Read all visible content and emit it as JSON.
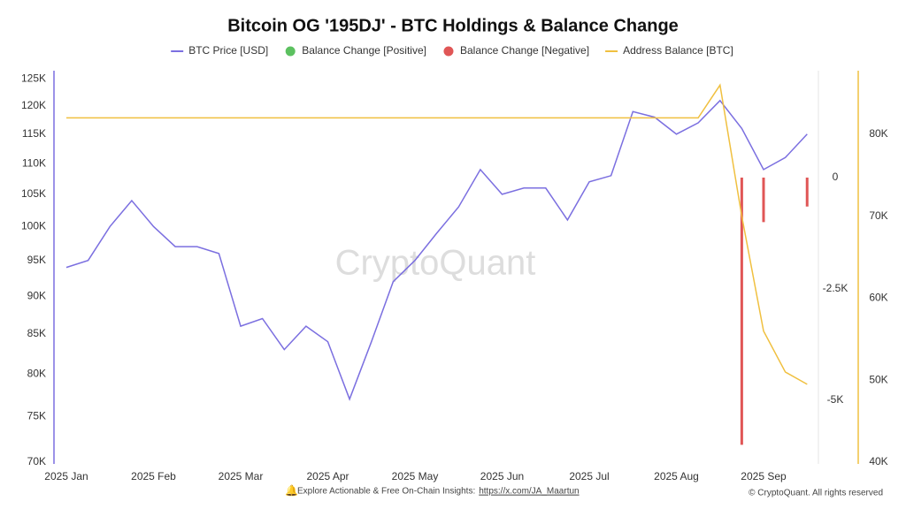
{
  "chart_data": {
    "type": "combo",
    "title": "Bitcoin OG '195DJ' - BTC Holdings & Balance Change",
    "watermark": "CryptoQuant",
    "categories": [
      "2025 Jan",
      null,
      null,
      null,
      "2025 Feb",
      null,
      null,
      null,
      "2025 Mar",
      null,
      null,
      null,
      "2025 Apr",
      null,
      null,
      null,
      "2025 May",
      null,
      null,
      null,
      "2025 Jun",
      null,
      null,
      null,
      "2025 Jul",
      null,
      null,
      null,
      "2025 Aug",
      null,
      null,
      null,
      "2025 Sep",
      null,
      null
    ],
    "series": [
      {
        "name": "BTC Price [USD]",
        "type": "line",
        "color": "#7b6fe0",
        "axis": "y",
        "values": [
          94000,
          95000,
          100000,
          104000,
          100000,
          97000,
          97000,
          96000,
          86000,
          87000,
          83000,
          86000,
          84000,
          77000,
          84000,
          92000,
          95000,
          99000,
          103000,
          109000,
          105000,
          106000,
          106000,
          101000,
          107000,
          108000,
          119000,
          118000,
          115000,
          117000,
          121000,
          116000,
          109000,
          111000,
          115000
        ]
      },
      {
        "name": "Balance Change [Positive]",
        "type": "bar",
        "color": "#5cc160",
        "axis": "y2",
        "values": [
          null,
          null,
          null,
          null,
          null,
          null,
          null,
          null,
          null,
          null,
          null,
          null,
          null,
          null,
          null,
          null,
          null,
          null,
          null,
          null,
          null,
          null,
          null,
          null,
          null,
          null,
          null,
          null,
          null,
          null,
          null,
          null,
          null,
          null,
          null
        ]
      },
      {
        "name": "Balance Change [Negative]",
        "type": "bar",
        "color": "#e05656",
        "axis": "y2",
        "values": [
          null,
          null,
          null,
          null,
          null,
          null,
          null,
          null,
          null,
          null,
          null,
          null,
          null,
          null,
          null,
          null,
          null,
          null,
          null,
          null,
          null,
          null,
          null,
          null,
          null,
          null,
          null,
          null,
          null,
          null,
          null,
          -6000,
          -1000,
          null,
          -650
        ]
      },
      {
        "name": "Address Balance [BTC]",
        "type": "line",
        "color": "#f0c040",
        "axis": "y3",
        "values": [
          82000,
          82000,
          82000,
          82000,
          82000,
          82000,
          82000,
          82000,
          82000,
          82000,
          82000,
          82000,
          82000,
          82000,
          82000,
          82000,
          82000,
          82000,
          82000,
          82000,
          82000,
          82000,
          82000,
          82000,
          82000,
          82000,
          82000,
          82000,
          82000,
          82000,
          86000,
          70000,
          56000,
          51000,
          49500
        ]
      }
    ],
    "log_y": true,
    "ylim": [
      70000,
      126600
    ],
    "yticks": [
      {
        "value": 70000,
        "label": "70K"
      },
      {
        "value": 75000,
        "label": "75K"
      },
      {
        "value": 80000,
        "label": "80K"
      },
      {
        "value": 85000,
        "label": "85K"
      },
      {
        "value": 90000,
        "label": "90K"
      },
      {
        "value": 95000,
        "label": "95K"
      },
      {
        "value": 100000,
        "label": "100K"
      },
      {
        "value": 105000,
        "label": "105K"
      },
      {
        "value": 110000,
        "label": "110K"
      },
      {
        "value": 115000,
        "label": "115K"
      },
      {
        "value": 120000,
        "label": "120K"
      },
      {
        "value": 125000,
        "label": "125K"
      }
    ],
    "y2lim": [
      -6390,
      2400
    ],
    "y2ticks": [
      0,
      {
        "value": -2500,
        "label": "-2.5K"
      },
      {
        "value": -5000,
        "label": "-5K"
      }
    ],
    "y3lim": [
      40000,
      87760
    ],
    "y3ticks": [
      {
        "value": 40000,
        "label": "40K"
      },
      {
        "value": 50000,
        "label": "50K"
      },
      {
        "value": 60000,
        "label": "60K"
      },
      {
        "value": 70000,
        "label": "70K"
      },
      {
        "value": 80000,
        "label": "80K"
      }
    ],
    "legend": "top",
    "footer": {
      "text": "Explore Actionable & Free On-Chain Insights:",
      "link": "https://x.com/JA_Maartun",
      "copyright": "© CryptoQuant. All rights reserved"
    }
  }
}
